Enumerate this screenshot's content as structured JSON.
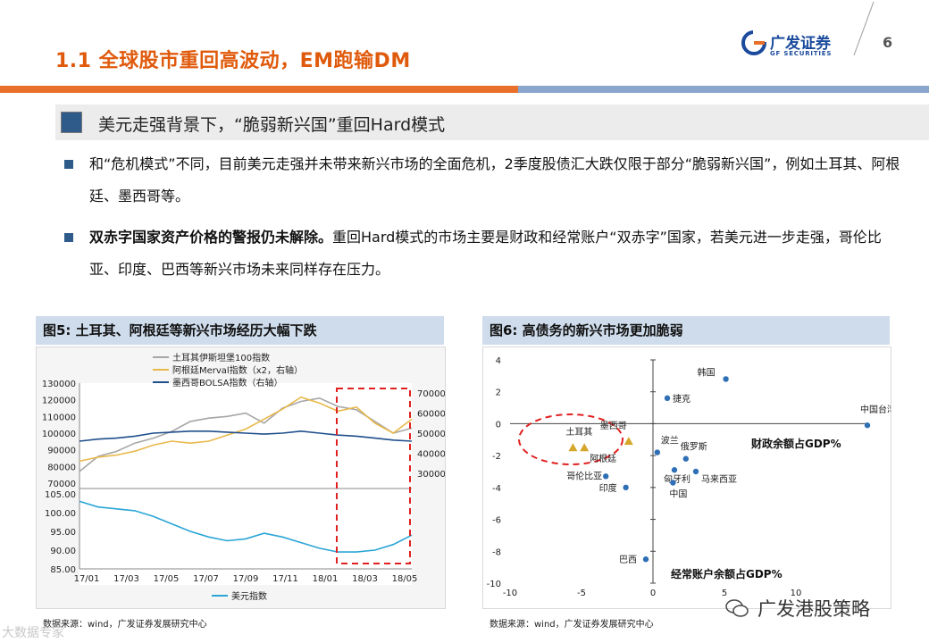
{
  "header": {
    "title": "1.1 全球股市重回高波动，EM跑输DM",
    "logo_cn": "广发证券",
    "logo_en": "GF SECURITIES",
    "page_number": "6",
    "colors": {
      "accent": "#e05a0c",
      "brand_blue": "#1a4a9c",
      "bar_orange": "#e8702a",
      "bar_blue": "#8aa6cc"
    }
  },
  "subheading": "美元走强背景下，“脆弱新兴国”重回Hard模式",
  "bullets": [
    {
      "lead": "",
      "text": "和“危机模式”不同，目前美元走强并未带来新兴市场的全面危机，2季度股债汇大跌仅限于部分“脆弱新兴国”，例如土耳其、阿根廷、墨西哥等。"
    },
    {
      "lead": "双赤字国家资产价格的警报仍未解除。",
      "text": "重回Hard模式的市场主要是财政和经常账户“双赤字”国家，若美元进一步走强，哥伦比亚、印度、巴西等新兴市场未来同样存在压力。"
    }
  ],
  "figure5": {
    "heading": "图5:  土耳其、阿根廷等新兴市场经历大幅下跌",
    "source": "数据来源：wind，广发证券发展研究中心"
  },
  "figure6": {
    "heading": "图6:  高债务的新兴市场更加脆弱",
    "source": "数据来源：wind，广发证券发展研究中心"
  },
  "watermark": "广发港股策略",
  "corner_watermark": "大数据专家",
  "chart_data": [
    {
      "type": "line",
      "title": "土耳其、阿根廷等新兴市场经历大幅下跌",
      "x_ticks": [
        "17/01",
        "17/03",
        "17/05",
        "17/07",
        "17/09",
        "17/11",
        "18/01",
        "18/03",
        "18/05"
      ],
      "upper_panel": {
        "left_axis": {
          "ylim": [
            70000,
            130000
          ],
          "ticks": [
            70000,
            80000,
            90000,
            100000,
            110000,
            120000,
            130000
          ]
        },
        "right_axis": {
          "ylim": [
            25000,
            75000
          ],
          "ticks": [
            30000,
            40000,
            50000,
            60000,
            70000
          ]
        },
        "series": [
          {
            "name": "土耳其伊斯坦堡100指数",
            "axis": "left",
            "color": "#a6a6a6",
            "values": [
              77000,
              86000,
              89000,
              94000,
              97000,
              101000,
              107000,
              109000,
              110000,
              112000,
              106000,
              115000,
              119000,
              121000,
              116000,
              114000,
              107000,
              100000,
              103000
            ]
          },
          {
            "name": "阿根廷Merval指数（x2，右轴）",
            "axis": "right",
            "color": "#e8b84a",
            "values": [
              36000,
              38000,
              39000,
              41000,
              44000,
              46000,
              45000,
              46000,
              49000,
              52000,
              57000,
              62000,
              68000,
              65000,
              61000,
              63000,
              55000,
              50000,
              57000
            ]
          },
          {
            "name": "墨西哥BOLSA指数（右轴）",
            "axis": "right",
            "color": "#1f4e8c",
            "values": [
              46000,
              47000,
              47500,
              48500,
              50000,
              50500,
              51000,
              51000,
              50500,
              50000,
              49500,
              50000,
              51000,
              50000,
              49000,
              48500,
              47500,
              46500,
              46000
            ]
          }
        ]
      },
      "lower_panel": {
        "ylim": [
          85,
          105
        ],
        "ticks": [
          "85.00",
          "90.00",
          "95.00",
          "100.00",
          "105.00"
        ],
        "series": [
          {
            "name": "美元指数",
            "color": "#2aa5d6",
            "values": [
              103,
              101.5,
              101,
              100.5,
              99,
              97,
              95,
              93.5,
              92.5,
              93,
              94.5,
              93.5,
              92,
              90.5,
              89.5,
              89.5,
              90,
              91.5,
              94
            ]
          }
        ]
      },
      "annotation": "red dashed box highlighting 18/02-18/06"
    },
    {
      "type": "scatter",
      "title": "高债务的新兴市场更加脆弱",
      "xlabel": "经常账户余额占GDP%",
      "ylabel": "财政余额占GDP%",
      "xlim": [
        -10,
        15
      ],
      "ylim": [
        -10,
        4
      ],
      "x_ticks": [
        -10,
        -5,
        0,
        5,
        10
      ],
      "y_ticks": [
        4,
        2,
        0,
        -2,
        -4,
        -6,
        -8,
        -10
      ],
      "points": [
        {
          "label": "韩国",
          "x": 5.1,
          "y": 2.8,
          "marker": "circle"
        },
        {
          "label": "捷克",
          "x": 1.0,
          "y": 1.6,
          "marker": "circle"
        },
        {
          "label": "中国台湾",
          "x": 15.0,
          "y": -0.1,
          "marker": "circle"
        },
        {
          "label": "波兰",
          "x": 0.3,
          "y": -1.8,
          "marker": "circle"
        },
        {
          "label": "俄罗斯",
          "x": 2.3,
          "y": -2.2,
          "marker": "circle"
        },
        {
          "label": "匈牙利",
          "x": 1.5,
          "y": -2.9,
          "marker": "circle"
        },
        {
          "label": "马来西亚",
          "x": 3.0,
          "y": -3.0,
          "marker": "circle"
        },
        {
          "label": "中国",
          "x": 1.4,
          "y": -3.7,
          "marker": "circle"
        },
        {
          "label": "哥伦比亚",
          "x": -3.3,
          "y": -3.3,
          "marker": "circle"
        },
        {
          "label": "印度",
          "x": -1.9,
          "y": -4.0,
          "marker": "circle"
        },
        {
          "label": "巴西",
          "x": -0.5,
          "y": -8.5,
          "marker": "circle"
        },
        {
          "label": "土耳其",
          "x": -5.6,
          "y": -1.5,
          "marker": "triangle"
        },
        {
          "label": "阿根廷",
          "x": -4.8,
          "y": -1.5,
          "marker": "triangle"
        },
        {
          "label": "墨西哥",
          "x": -1.7,
          "y": -1.1,
          "marker": "triangle"
        }
      ],
      "annotation": "red dashed ellipse around 土耳其, 阿根廷, 墨西哥"
    }
  ]
}
